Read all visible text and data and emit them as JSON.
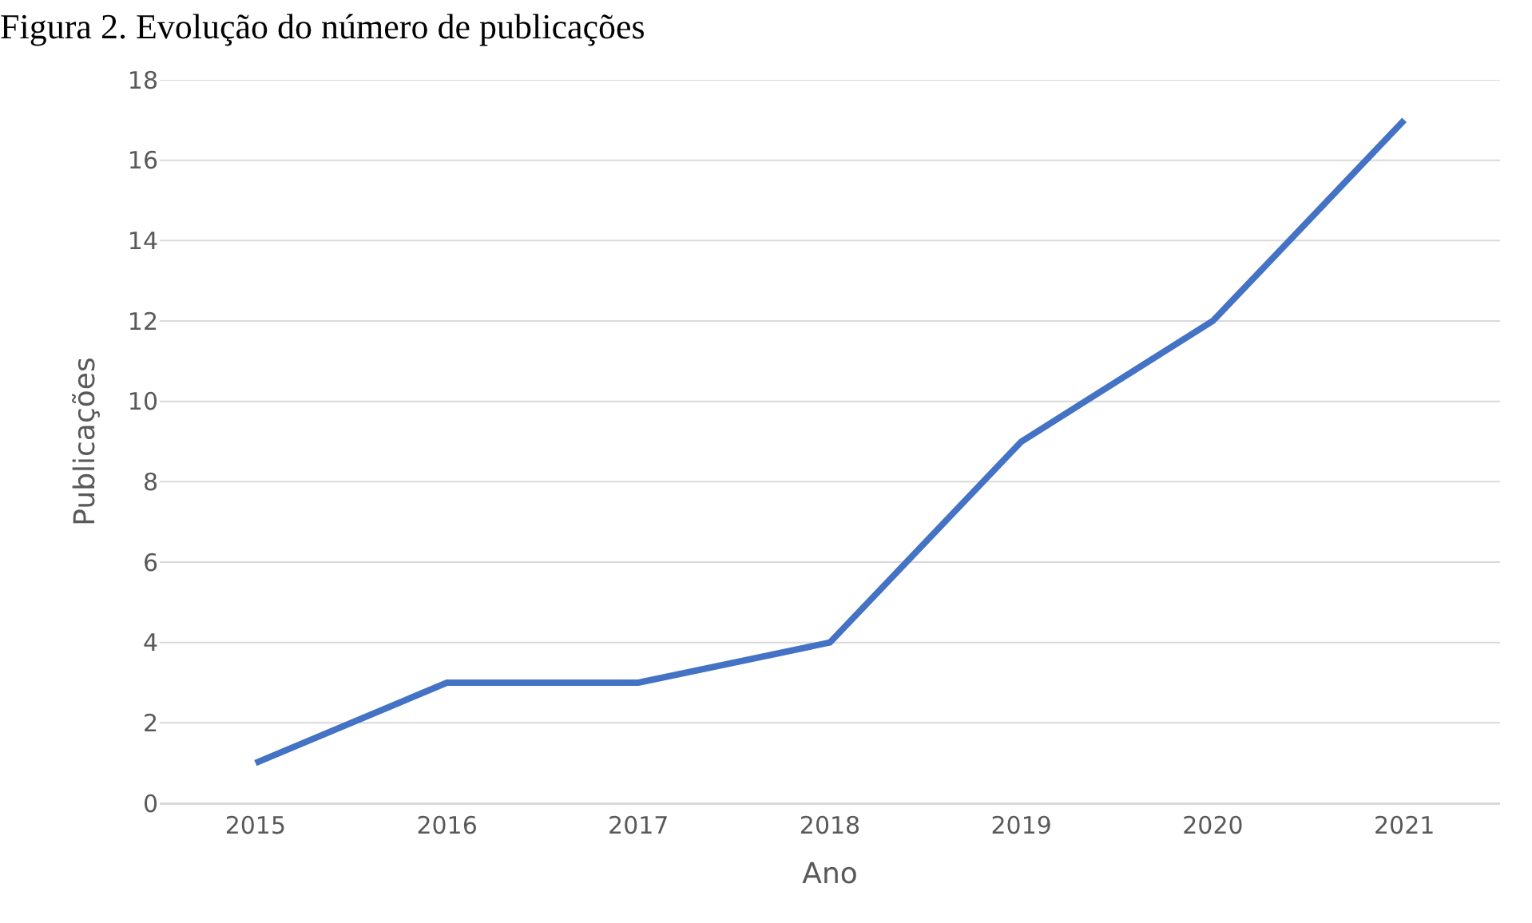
{
  "chart_data": {
    "type": "line",
    "title": "Figura 2. Evolução do número de publicações",
    "xlabel": "Ano",
    "ylabel": "Publicações",
    "categories": [
      "2015",
      "2016",
      "2017",
      "2018",
      "2019",
      "2020",
      "2021"
    ],
    "series": [
      {
        "color": "#4472c4",
        "values": [
          1,
          3,
          3,
          4,
          9,
          12,
          17
        ]
      }
    ],
    "ylim": [
      0,
      18
    ],
    "yticks": [
      0,
      2,
      4,
      6,
      8,
      10,
      12,
      14,
      16,
      18
    ],
    "grid": "y",
    "marker": "none",
    "line_style": "solid"
  }
}
